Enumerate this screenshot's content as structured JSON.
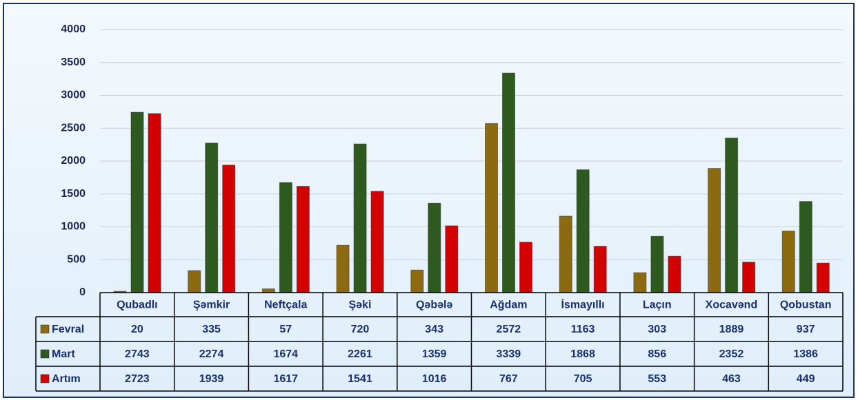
{
  "chart_data": {
    "type": "bar",
    "categories": [
      "Qubadlı",
      "Şəmkir",
      "Neftçala",
      "Şəki",
      "Qəbələ",
      "Ağdam",
      "İsmayıllı",
      "Laçın",
      "Xocavənd",
      "Qobustan"
    ],
    "series": [
      {
        "name": "Fevral",
        "color": "#8c6a12",
        "values": [
          20,
          335,
          57,
          720,
          343,
          2572,
          1163,
          303,
          1889,
          937
        ]
      },
      {
        "name": "Mart",
        "color": "#2e5a1f",
        "values": [
          2743,
          2274,
          1674,
          2261,
          1359,
          3339,
          1868,
          856,
          2352,
          1386
        ]
      },
      {
        "name": "Artım",
        "color": "#d40000",
        "values": [
          2723,
          1939,
          1617,
          1541,
          1016,
          767,
          705,
          553,
          463,
          449
        ]
      }
    ],
    "ylim": [
      0,
      4000
    ],
    "yticks": [
      0,
      500,
      1000,
      1500,
      2000,
      2500,
      3000,
      3500,
      4000
    ],
    "grid": true
  }
}
